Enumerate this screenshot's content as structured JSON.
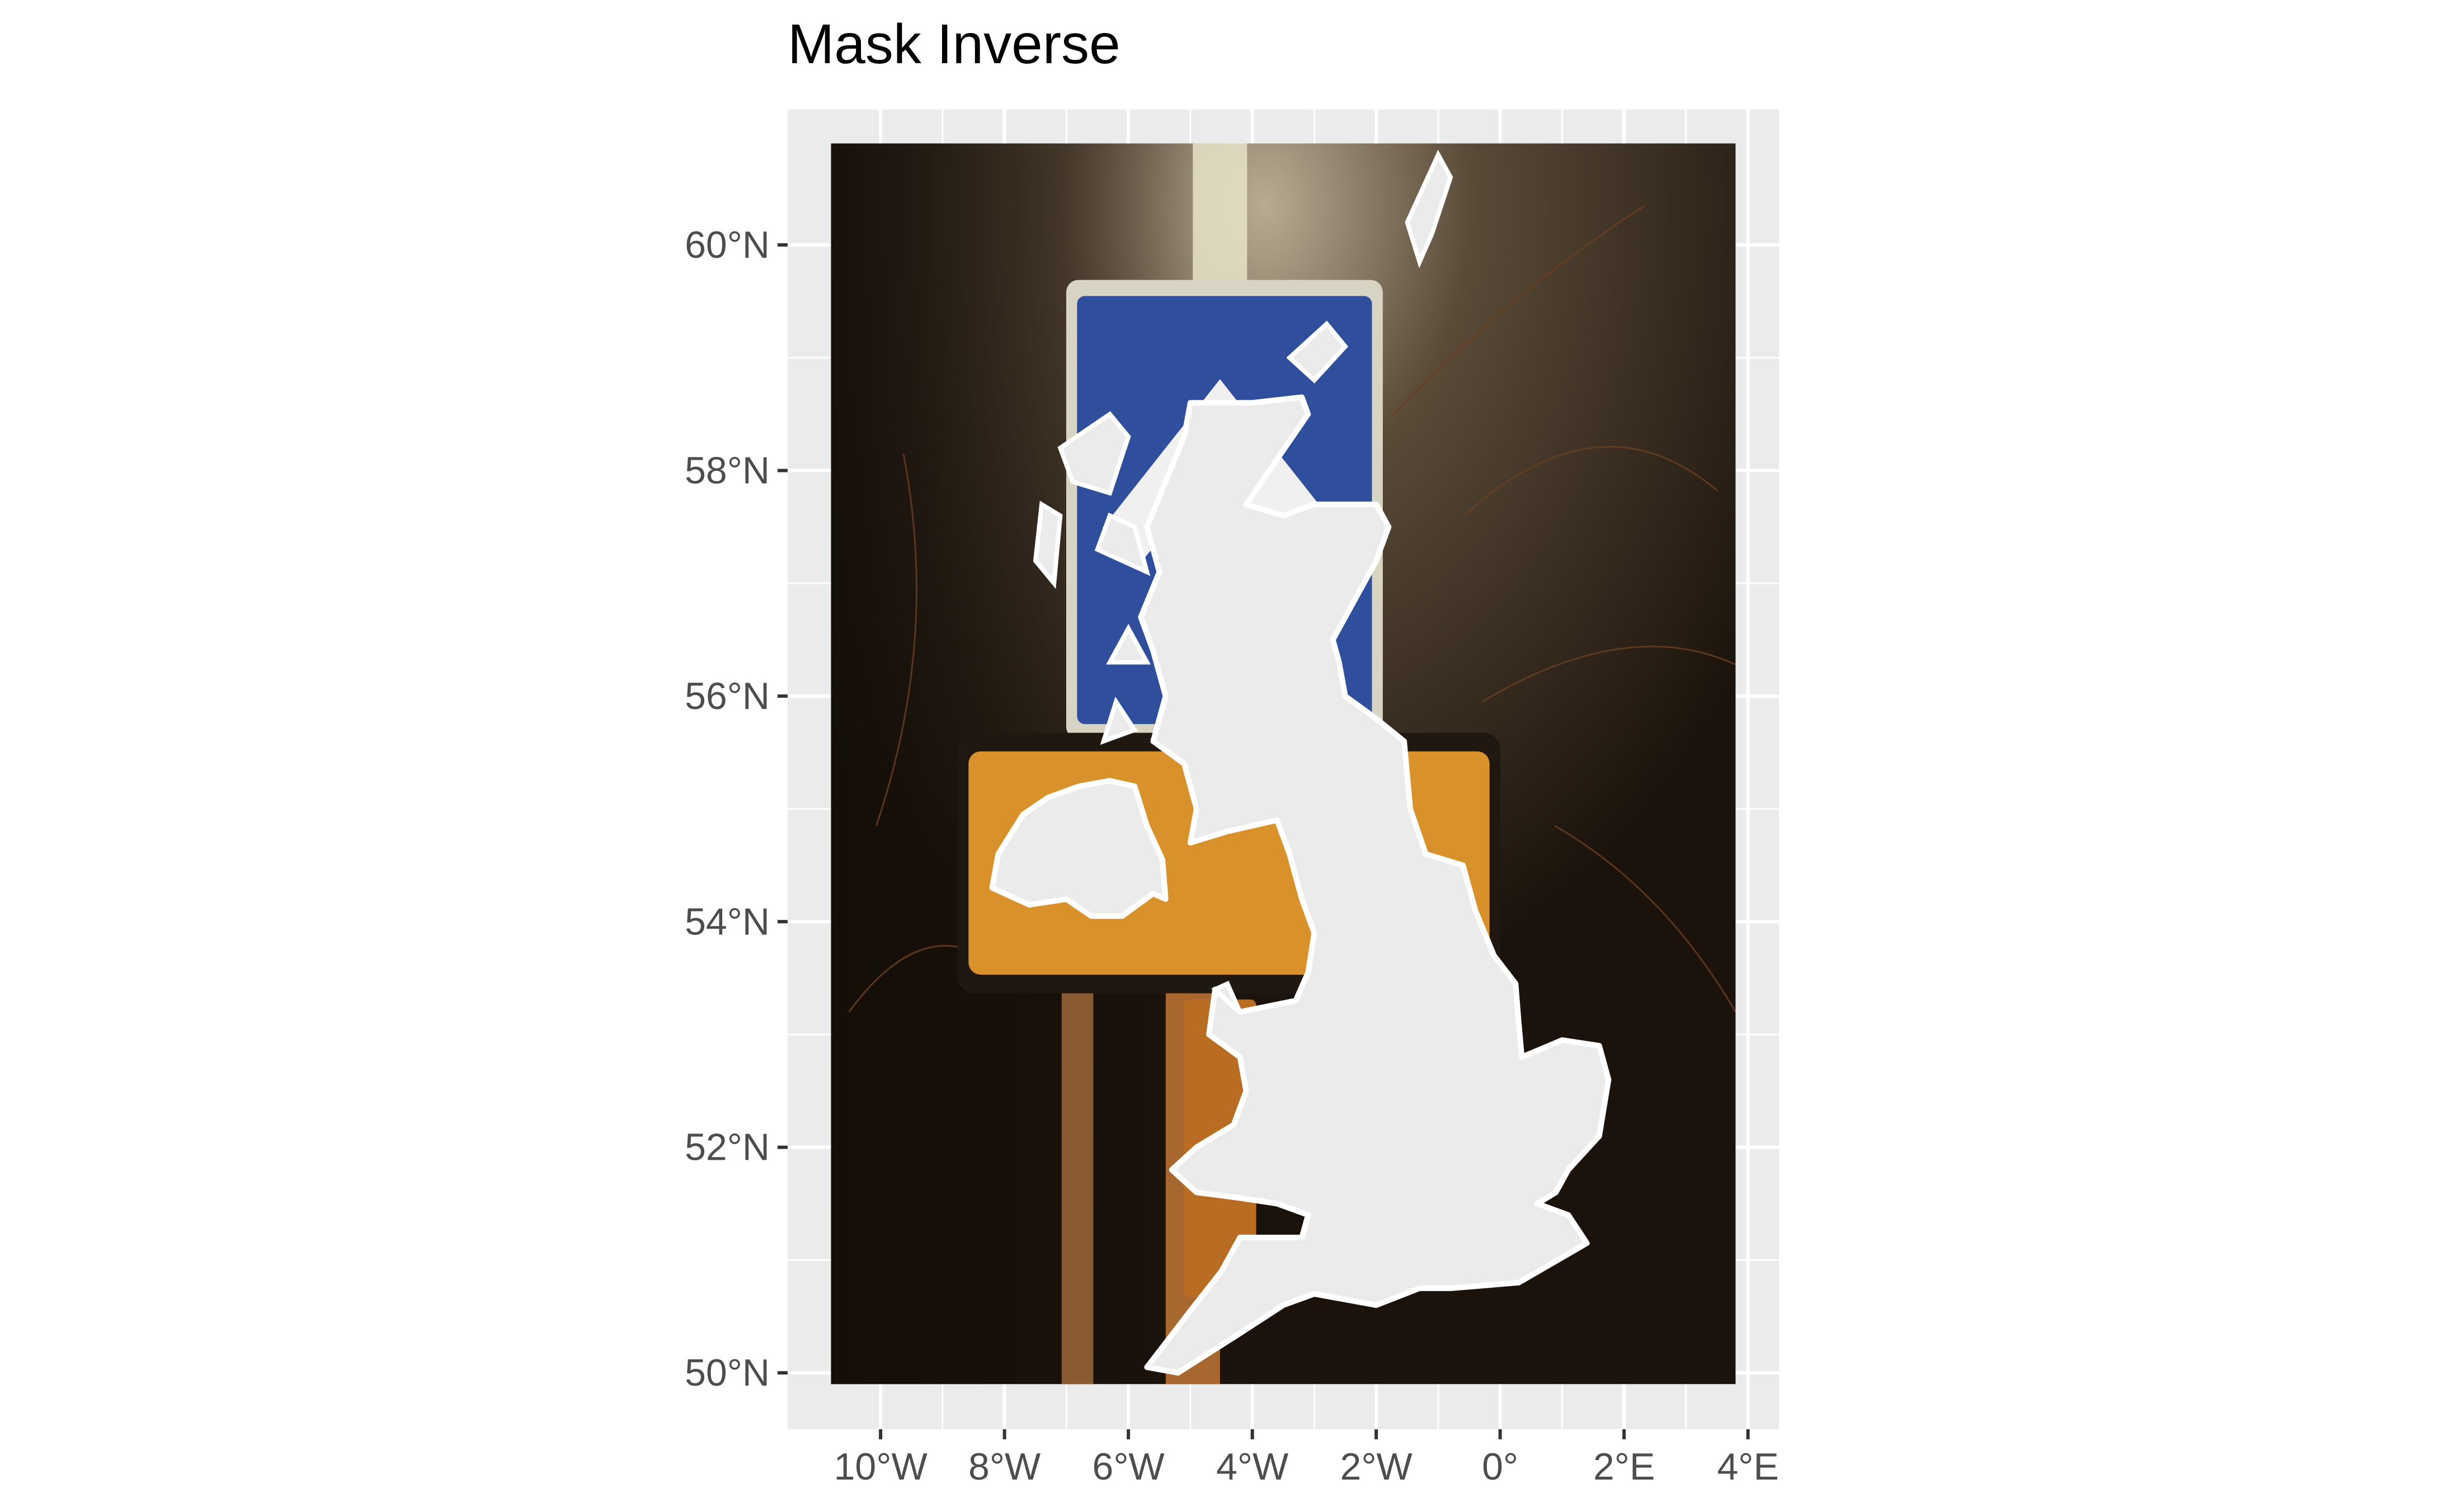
{
  "title": "Mask Inverse",
  "colors": {
    "panel_background": "#ebebeb",
    "grid_line": "#ffffff",
    "mask_fill": "#ebebeb",
    "axis_text": "#4d4d4d",
    "photo_night_dark": "#1b140d",
    "photo_glow": "#8a7a62",
    "sign_blue": "#2f4f9c",
    "sign_orange": "#d9912b"
  },
  "map": {
    "type": "geographic map with image inverse mask",
    "region": "United Kingdom outline (masked, shown as panel background) over a night photograph of road signs",
    "lon_range": [
      -11.5,
      4.5
    ],
    "lat_range": [
      49.5,
      61.2
    ],
    "image_extent": {
      "lon": [
        -10.8,
        3.8
      ],
      "lat": [
        49.9,
        60.9
      ]
    },
    "x_ticks": [
      {
        "value": -10,
        "label": "10°W"
      },
      {
        "value": -8,
        "label": "8°W"
      },
      {
        "value": -6,
        "label": "6°W"
      },
      {
        "value": -4,
        "label": "4°W"
      },
      {
        "value": -2,
        "label": "2°W"
      },
      {
        "value": 0,
        "label": "0°"
      },
      {
        "value": 2,
        "label": "2°E"
      },
      {
        "value": 4,
        "label": "4°E"
      }
    ],
    "y_ticks": [
      {
        "value": 50,
        "label": "50°N"
      },
      {
        "value": 52,
        "label": "52°N"
      },
      {
        "value": 54,
        "label": "54°N"
      },
      {
        "value": 56,
        "label": "56°N"
      },
      {
        "value": 58,
        "label": "58°N"
      },
      {
        "value": 60,
        "label": "60°N"
      }
    ],
    "grid": true
  }
}
